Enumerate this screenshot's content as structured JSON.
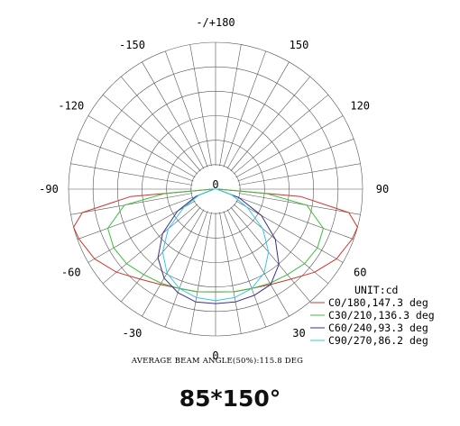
{
  "chart_data": {
    "type": "polar",
    "unit_label": "UNIT:cd",
    "angle_ticks": [
      "-/+180",
      "150",
      "120",
      "90",
      "60",
      "30",
      "0",
      "-30",
      "-60",
      "-90",
      "-120",
      "-150"
    ],
    "center_label": "0",
    "grid": true,
    "legend_position": "bottom-right",
    "caption": "AVERAGE BEAM ANGLE(50%):115.8 DEG",
    "series": [
      {
        "name": "C0/180,147.3 deg",
        "color": "#d0342c",
        "points": [
          [
            -90,
            0.02
          ],
          [
            -85,
            0.58
          ],
          [
            -80,
            0.92
          ],
          [
            -75,
            1.0
          ],
          [
            -70,
            0.99
          ],
          [
            -60,
            0.95
          ],
          [
            -50,
            0.88
          ],
          [
            -40,
            0.8
          ],
          [
            -30,
            0.75
          ],
          [
            -20,
            0.72
          ],
          [
            -10,
            0.71
          ],
          [
            0,
            0.7
          ],
          [
            10,
            0.71
          ],
          [
            20,
            0.72
          ],
          [
            30,
            0.75
          ],
          [
            40,
            0.8
          ],
          [
            50,
            0.88
          ],
          [
            60,
            0.95
          ],
          [
            70,
            0.99
          ],
          [
            75,
            1.0
          ],
          [
            80,
            0.92
          ],
          [
            85,
            0.58
          ],
          [
            90,
            0.02
          ]
        ]
      },
      {
        "name": "C30/210,136.3 deg",
        "color": "#3cbf3c",
        "points": [
          [
            -90,
            0.02
          ],
          [
            -85,
            0.35
          ],
          [
            -80,
            0.63
          ],
          [
            -70,
            0.78
          ],
          [
            -60,
            0.8
          ],
          [
            -50,
            0.79
          ],
          [
            -40,
            0.76
          ],
          [
            -30,
            0.74
          ],
          [
            -20,
            0.72
          ],
          [
            -10,
            0.71
          ],
          [
            0,
            0.7
          ],
          [
            10,
            0.71
          ],
          [
            20,
            0.72
          ],
          [
            30,
            0.74
          ],
          [
            40,
            0.76
          ],
          [
            50,
            0.79
          ],
          [
            60,
            0.8
          ],
          [
            70,
            0.78
          ],
          [
            80,
            0.63
          ],
          [
            85,
            0.35
          ],
          [
            90,
            0.02
          ]
        ]
      },
      {
        "name": "C60/240,93.3 deg",
        "color": "#3a2f8c",
        "points": [
          [
            -90,
            0.01
          ],
          [
            -70,
            0.14
          ],
          [
            -60,
            0.3
          ],
          [
            -50,
            0.47
          ],
          [
            -40,
            0.61
          ],
          [
            -30,
            0.7
          ],
          [
            -20,
            0.75
          ],
          [
            -10,
            0.78
          ],
          [
            0,
            0.78
          ],
          [
            10,
            0.78
          ],
          [
            20,
            0.77
          ],
          [
            30,
            0.75
          ],
          [
            40,
            0.67
          ],
          [
            50,
            0.53
          ],
          [
            60,
            0.36
          ],
          [
            70,
            0.17
          ],
          [
            90,
            0.01
          ]
        ]
      },
      {
        "name": "C90/270,86.2 deg",
        "color": "#33c8e8",
        "points": [
          [
            -90,
            0.01
          ],
          [
            -70,
            0.12
          ],
          [
            -60,
            0.25
          ],
          [
            -50,
            0.42
          ],
          [
            -40,
            0.56
          ],
          [
            -30,
            0.66
          ],
          [
            -20,
            0.72
          ],
          [
            -10,
            0.75
          ],
          [
            0,
            0.76
          ],
          [
            10,
            0.75
          ],
          [
            20,
            0.72
          ],
          [
            30,
            0.66
          ],
          [
            40,
            0.56
          ],
          [
            50,
            0.42
          ],
          [
            60,
            0.25
          ],
          [
            70,
            0.12
          ],
          [
            90,
            0.01
          ]
        ]
      }
    ]
  },
  "title": "85*150°"
}
